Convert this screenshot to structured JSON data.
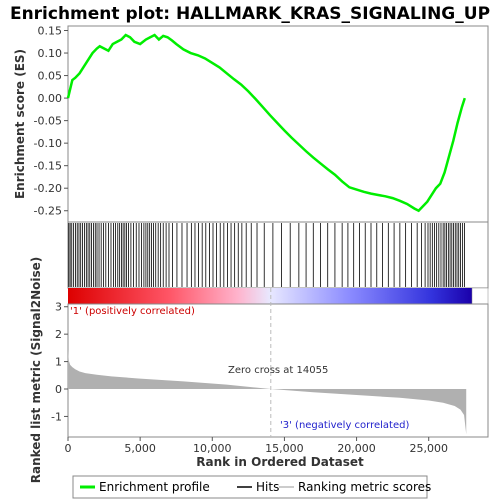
{
  "chart_data": {
    "type": "line",
    "title": "Enrichment plot: HALLMARK_KRAS_SIGNALING_UP",
    "es_panel": {
      "ylabel": "Enrichment score (ES)",
      "ylim": [
        -0.275,
        0.16
      ],
      "yticks": [
        "0.15",
        "0.10",
        "0.05",
        "0.00",
        "-0.05",
        "-0.10",
        "-0.15",
        "-0.20",
        "-0.25"
      ],
      "ytick_values": [
        0.15,
        0.1,
        0.05,
        0.0,
        -0.05,
        -0.1,
        -0.15,
        -0.2,
        -0.25
      ],
      "line_color": "#00ee00",
      "series": [
        {
          "name": "Enrichment profile",
          "x": [
            0,
            150,
            300,
            500,
            800,
            1100,
            1400,
            1700,
            2000,
            2200,
            2500,
            2800,
            3100,
            3400,
            3700,
            4000,
            4300,
            4600,
            5000,
            5400,
            5700,
            6000,
            6300,
            6600,
            6900,
            7200,
            7500,
            8000,
            8500,
            9000,
            9500,
            10000,
            10500,
            11000,
            11500,
            12000,
            12500,
            13000,
            13500,
            14000,
            14500,
            15000,
            15500,
            16000,
            16500,
            17000,
            17500,
            18000,
            18500,
            19000,
            19500,
            20000,
            20500,
            21000,
            21500,
            22000,
            22500,
            23000,
            23500,
            24000,
            24300,
            24600,
            24900,
            25200,
            25500,
            25800,
            26100,
            26400,
            26700,
            27000,
            27300,
            27500
          ],
          "y": [
            0.0,
            0.02,
            0.04,
            0.045,
            0.055,
            0.07,
            0.085,
            0.1,
            0.11,
            0.115,
            0.11,
            0.105,
            0.12,
            0.125,
            0.13,
            0.14,
            0.135,
            0.125,
            0.12,
            0.13,
            0.135,
            0.14,
            0.13,
            0.138,
            0.135,
            0.128,
            0.12,
            0.108,
            0.1,
            0.095,
            0.088,
            0.078,
            0.068,
            0.055,
            0.042,
            0.03,
            0.015,
            -0.002,
            -0.02,
            -0.038,
            -0.055,
            -0.072,
            -0.088,
            -0.103,
            -0.118,
            -0.132,
            -0.145,
            -0.158,
            -0.17,
            -0.185,
            -0.198,
            -0.203,
            -0.208,
            -0.212,
            -0.215,
            -0.218,
            -0.222,
            -0.228,
            -0.235,
            -0.245,
            -0.25,
            -0.24,
            -0.23,
            -0.215,
            -0.2,
            -0.19,
            -0.165,
            -0.13,
            -0.095,
            -0.055,
            -0.02,
            0.0
          ]
        }
      ]
    },
    "hits": {
      "ranks": [
        60,
        150,
        260,
        390,
        520,
        640,
        760,
        880,
        1010,
        1140,
        1270,
        1390,
        1510,
        1630,
        1760,
        1890,
        2010,
        2150,
        2300,
        2460,
        2620,
        2800,
        2980,
        3150,
        3300,
        3450,
        3580,
        3700,
        3820,
        3940,
        4060,
        4200,
        4360,
        4540,
        4730,
        4920,
        5100,
        5260,
        5400,
        5530,
        5660,
        5790,
        5930,
        6080,
        6250,
        6420,
        6600,
        6800,
        7000,
        7250,
        7550,
        7900,
        8250,
        8550,
        8800,
        9050,
        9300,
        9550,
        9800,
        10050,
        10300,
        10550,
        10800,
        11050,
        11300,
        11550,
        11800,
        12050,
        12350,
        12700,
        13100,
        13600,
        14200,
        14800,
        15400,
        16000,
        16500,
        17000,
        17500,
        18000,
        18500,
        19000,
        19400,
        19800,
        20200,
        20600,
        21000,
        21400,
        21800,
        22200,
        22600,
        23000,
        23400,
        23800,
        24200,
        24500,
        24750,
        24950,
        25100,
        25250,
        25400,
        25550,
        25700,
        25850,
        26000,
        26120,
        26240,
        26360,
        26480,
        26600,
        26720,
        26840,
        26960,
        27080,
        27200,
        27350,
        27480
      ]
    },
    "metric_panel": {
      "ylabel": "Ranked list metric (Signal2Noise)",
      "ylim": [
        -1.75,
        3.1
      ],
      "yticks": [
        "3",
        "2",
        "1",
        "0",
        "-1"
      ],
      "ytick_values": [
        3,
        2,
        1,
        0,
        -1
      ],
      "x": [
        0,
        50,
        150,
        300,
        500,
        800,
        1200,
        2000,
        3000,
        5000,
        8000,
        11000,
        14055,
        17000,
        20000,
        23000,
        25000,
        26000,
        26800,
        27200,
        27450,
        27600
      ],
      "y": [
        1.45,
        1.05,
        0.88,
        0.8,
        0.72,
        0.64,
        0.58,
        0.52,
        0.46,
        0.38,
        0.28,
        0.16,
        0.0,
        -0.12,
        -0.22,
        -0.32,
        -0.42,
        -0.5,
        -0.62,
        -0.75,
        -0.95,
        -1.65
      ]
    },
    "xaxis": {
      "label": "Rank in Ordered Dataset",
      "xlim": [
        0,
        28000
      ],
      "ticks": [
        "0",
        "5,000",
        "10,000",
        "15,000",
        "20,000",
        "25,000"
      ],
      "tick_values": [
        0,
        5000,
        10000,
        15000,
        20000,
        25000
      ]
    },
    "zero_cross": 14055,
    "annotations": {
      "positive": "'1' (positively correlated)",
      "negative": "'3' (negatively correlated)",
      "zero_cross": "Zero cross at 14055"
    },
    "legend": {
      "placement": "bottom",
      "items": [
        {
          "label": "Enrichment profile",
          "color": "#00ee00"
        },
        {
          "label": "Hits",
          "color": "#000000"
        },
        {
          "label": "Ranking metric scores",
          "color": "#bbbbbb"
        }
      ]
    }
  }
}
